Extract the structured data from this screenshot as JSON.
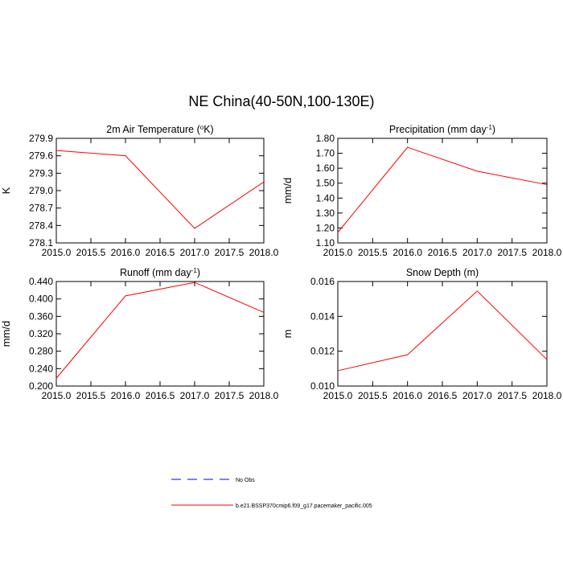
{
  "title": "NE China(40-50N,100-130E)",
  "legend": {
    "entries": [
      {
        "name": "No Obs",
        "color": "#0000ff",
        "dash": true
      },
      {
        "name": "b.e21.BSSP370cmip6.f09_g17.pacemaker_pacific.005",
        "color": "#ff0000",
        "dash": false
      }
    ]
  },
  "chart_data": [
    {
      "type": "line",
      "title": [
        "2m Air Temperature (",
        "o",
        "K)"
      ],
      "ylabel": "K",
      "x": [
        2015,
        2016,
        2017,
        2018
      ],
      "series": [
        {
          "color": "#ff0000",
          "values": [
            279.69,
            279.6,
            278.35,
            279.15
          ]
        }
      ],
      "xlim": [
        2015,
        2018
      ],
      "xticks": [
        {
          "value": 2015,
          "label": "2015.0"
        },
        2015.5,
        {
          "value": 2016,
          "label": "2016.0"
        },
        2016.5,
        {
          "value": 2017,
          "label": "2017.0"
        },
        2017.5,
        {
          "value": 2018,
          "label": "2018.0"
        }
      ],
      "ylim": [
        278.1,
        279.9
      ],
      "yticks": [
        278.1,
        278.4,
        278.7,
        {
          "value": 279,
          "label": "279.0"
        },
        279.3,
        279.6,
        279.9
      ]
    },
    {
      "type": "line",
      "title": [
        "Precipitation (mm day",
        "-1",
        ")"
      ],
      "ylabel": "mm/d",
      "x": [
        2015,
        2016,
        2017,
        2018
      ],
      "series": [
        {
          "color": "#ff0000",
          "values": [
            1.17,
            1.74,
            1.58,
            1.49
          ]
        }
      ],
      "xlim": [
        2015,
        2018
      ],
      "xticks": [
        {
          "value": 2015,
          "label": "2015.0"
        },
        2015.5,
        {
          "value": 2016,
          "label": "2016.0"
        },
        2016.5,
        {
          "value": 2017,
          "label": "2017.0"
        },
        2017.5,
        {
          "value": 2018,
          "label": "2018.0"
        }
      ],
      "ylim": [
        1.1,
        1.8
      ],
      "yticks": [
        {
          "value": 1.1,
          "label": "1.10"
        },
        {
          "value": 1.2,
          "label": "1.20"
        },
        {
          "value": 1.3,
          "label": "1.30"
        },
        {
          "value": 1.4,
          "label": "1.40"
        },
        {
          "value": 1.5,
          "label": "1.50"
        },
        {
          "value": 1.6,
          "label": "1.60"
        },
        {
          "value": 1.7,
          "label": "1.70"
        },
        {
          "value": 1.8,
          "label": "1.80"
        }
      ]
    },
    {
      "type": "line",
      "title": [
        "Runoff (mm day",
        "-1",
        ")"
      ],
      "ylabel": "mm/d",
      "x": [
        2015,
        2016,
        2017,
        2018
      ],
      "series": [
        {
          "color": "#ff0000",
          "values": [
            0.218,
            0.407,
            0.438,
            0.369
          ]
        }
      ],
      "xlim": [
        2015,
        2018
      ],
      "xticks": [
        {
          "value": 2015,
          "label": "2015.0"
        },
        2015.5,
        {
          "value": 2016,
          "label": "2016.0"
        },
        2016.5,
        {
          "value": 2017,
          "label": "2017.0"
        },
        2017.5,
        {
          "value": 2018,
          "label": "2018.0"
        }
      ],
      "ylim": [
        0.2,
        0.44
      ],
      "yticks": [
        {
          "value": 0.2,
          "label": "0.200"
        },
        {
          "value": 0.24,
          "label": "0.240"
        },
        {
          "value": 0.28,
          "label": "0.280"
        },
        {
          "value": 0.32,
          "label": "0.320"
        },
        {
          "value": 0.36,
          "label": "0.360"
        },
        {
          "value": 0.4,
          "label": "0.400"
        },
        {
          "value": 0.44,
          "label": "0.440"
        }
      ]
    },
    {
      "type": "line",
      "title": [
        "Snow Depth (m)"
      ],
      "ylabel": "m",
      "x": [
        2015,
        2016,
        2017,
        2018
      ],
      "series": [
        {
          "color": "#ff0000",
          "values": [
            0.01088,
            0.0118,
            0.01545,
            0.01152
          ]
        }
      ],
      "xlim": [
        2015,
        2018
      ],
      "xticks": [
        {
          "value": 2015,
          "label": "2015.0"
        },
        2015.5,
        {
          "value": 2016,
          "label": "2016.0"
        },
        2016.5,
        {
          "value": 2017,
          "label": "2017.0"
        },
        2017.5,
        {
          "value": 2018,
          "label": "2018.0"
        }
      ],
      "ylim": [
        0.01,
        0.016
      ],
      "yticks": [
        {
          "value": 0.01,
          "label": "0.010"
        },
        {
          "value": 0.012,
          "label": "0.012"
        },
        {
          "value": 0.014,
          "label": "0.014"
        },
        {
          "value": 0.016,
          "label": "0.016"
        }
      ]
    }
  ]
}
